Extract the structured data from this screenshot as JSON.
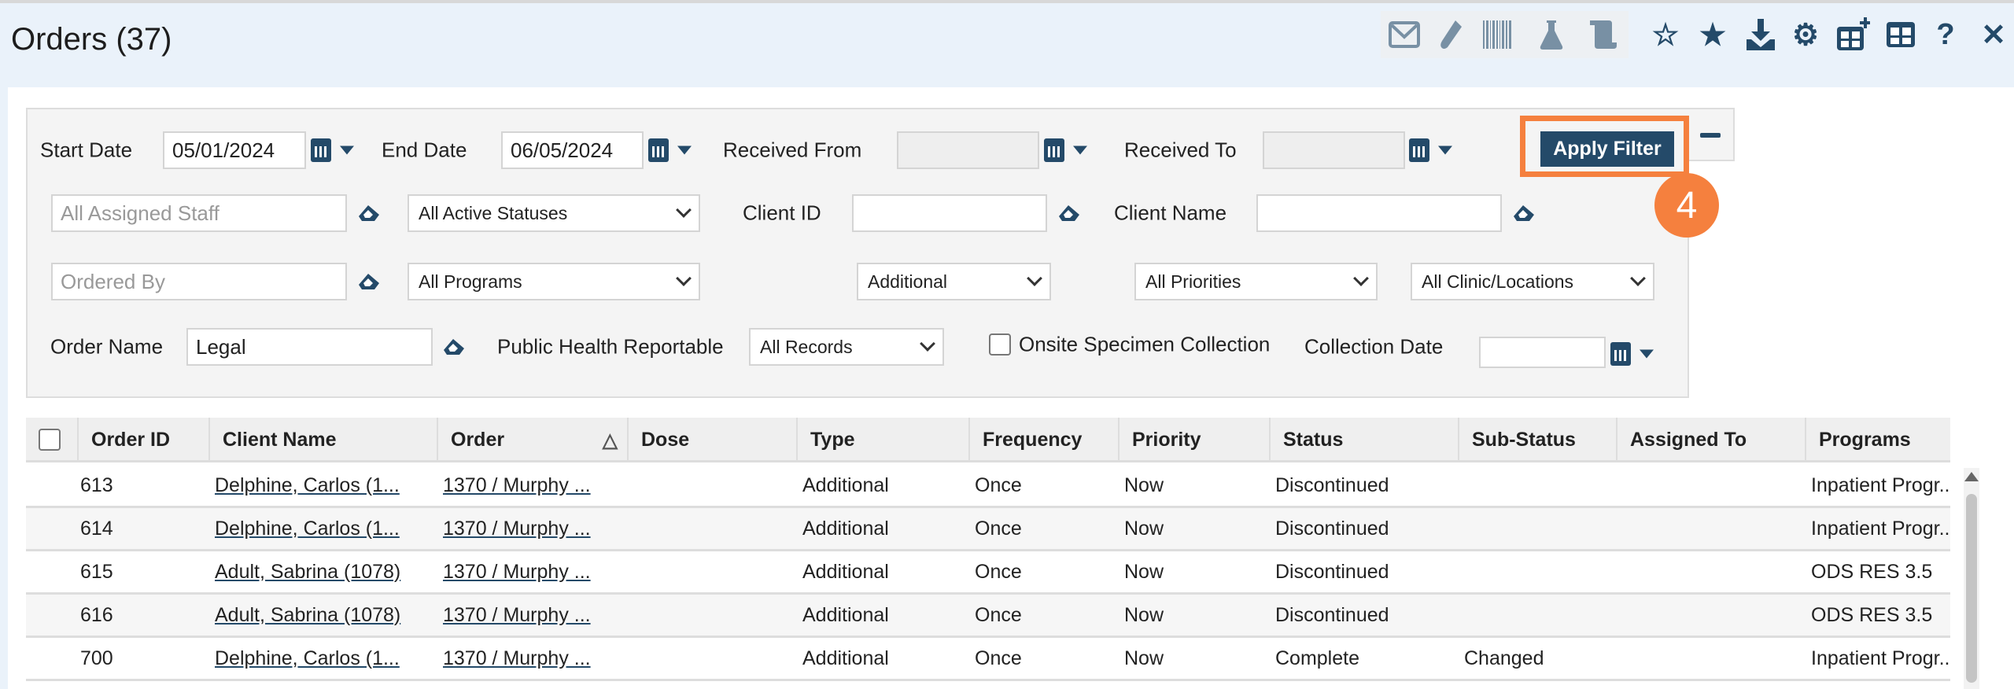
{
  "header": {
    "title": "Orders (37)",
    "icons": [
      "envelope-icon",
      "test-tube-icon",
      "barcode-icon",
      "flask-icon",
      "scroll-icon",
      "star-plus-icon",
      "star-icon",
      "download-icon",
      "gear-icon",
      "grid-plus-icon",
      "grid-icon",
      "help-icon",
      "close-icon"
    ]
  },
  "filters": {
    "start_date_label": "Start Date",
    "start_date": "05/01/2024",
    "end_date_label": "End Date",
    "end_date": "06/05/2024",
    "received_from_label": "Received From",
    "received_from": "",
    "received_to_label": "Received To",
    "received_to": "",
    "apply_label": "Apply Filter",
    "step_badge": "4",
    "assigned_staff_placeholder": "All Assigned Staff",
    "status_select": "All Active Statuses",
    "client_id_label": "Client ID",
    "client_id": "",
    "client_name_label": "Client Name",
    "client_name": "",
    "ordered_by_placeholder": "Ordered By",
    "programs_select": "All Programs",
    "type_select": "Additional",
    "priorities_select": "All Priorities",
    "locations_select": "All Clinic/Locations",
    "order_name_label": "Order Name",
    "order_name": "Legal",
    "phr_label": "Public Health Reportable",
    "phr_select": "All Records",
    "onsite_label": "Onsite Specimen Collection",
    "onsite_checked": false,
    "collection_date_label": "Collection Date",
    "collection_date": ""
  },
  "table": {
    "columns": [
      "Order ID",
      "Client Name",
      "Order",
      "Dose",
      "Type",
      "Frequency",
      "Priority",
      "Status",
      "Sub-Status",
      "Assigned To",
      "Programs"
    ],
    "sort": {
      "column": "Order",
      "direction": "ascending"
    },
    "rows": [
      [
        "613",
        "Delphine, Carlos (1...",
        "1370 / Murphy ...",
        "",
        "Additional",
        "Once",
        "Now",
        "Discontinued",
        "",
        "",
        "Inpatient Progr..."
      ],
      [
        "614",
        "Delphine, Carlos (1...",
        "1370 / Murphy ...",
        "",
        "Additional",
        "Once",
        "Now",
        "Discontinued",
        "",
        "",
        "Inpatient Progr..."
      ],
      [
        "615",
        "Adult, Sabrina (1078)",
        "1370 / Murphy ...",
        "",
        "Additional",
        "Once",
        "Now",
        "Discontinued",
        "",
        "",
        "ODS RES 3.5"
      ],
      [
        "616",
        "Adult, Sabrina (1078)",
        "1370 / Murphy ...",
        "",
        "Additional",
        "Once",
        "Now",
        "Discontinued",
        "",
        "",
        "ODS RES 3.5"
      ],
      [
        "700",
        "Delphine, Carlos (1...",
        "1370 / Murphy ...",
        "",
        "Additional",
        "Once",
        "Now",
        "Complete",
        "Changed",
        "",
        "Inpatient Progr..."
      ]
    ]
  },
  "colors": {
    "primary": "#244a69",
    "highlight": "#f5803e",
    "header_bg": "#eaf2fa"
  }
}
